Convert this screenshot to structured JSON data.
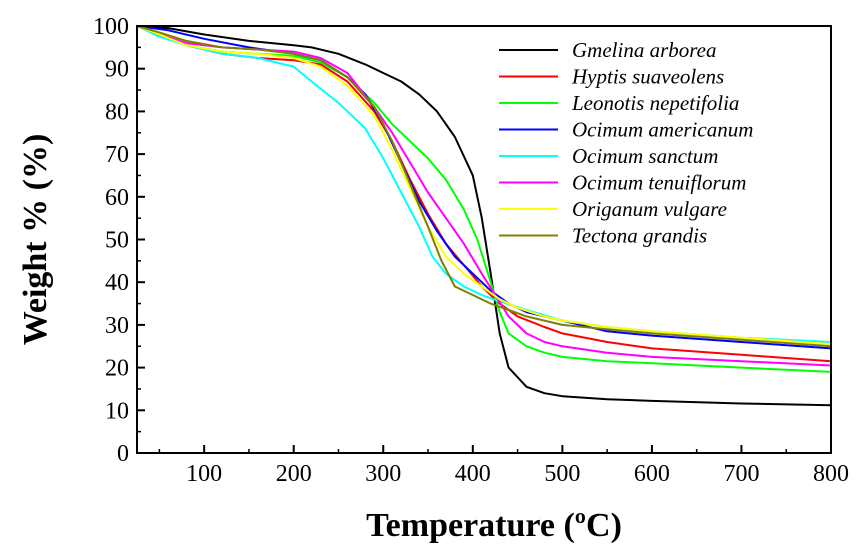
{
  "chart_data": {
    "type": "line",
    "title": "",
    "xlabel": "Temperature (ºC)",
    "ylabel": "Weight % (%)",
    "xlim": [
      25,
      800
    ],
    "ylim": [
      0,
      100
    ],
    "xticks": [
      100,
      200,
      300,
      400,
      500,
      600,
      700,
      800
    ],
    "yticks": [
      0,
      10,
      20,
      30,
      40,
      50,
      60,
      70,
      80,
      90,
      100
    ],
    "grid": false,
    "legend_position": "top-right",
    "series": [
      {
        "name": "Gmelina arborea",
        "color": "#000000",
        "points": [
          [
            25,
            100
          ],
          [
            60,
            99.5
          ],
          [
            100,
            98
          ],
          [
            150,
            96.5
          ],
          [
            200,
            95.5
          ],
          [
            220,
            95
          ],
          [
            250,
            93.5
          ],
          [
            280,
            91
          ],
          [
            300,
            89
          ],
          [
            320,
            87
          ],
          [
            340,
            84
          ],
          [
            360,
            80
          ],
          [
            380,
            74
          ],
          [
            400,
            65
          ],
          [
            410,
            55
          ],
          [
            420,
            42
          ],
          [
            430,
            28
          ],
          [
            440,
            20
          ],
          [
            460,
            15.5
          ],
          [
            480,
            14
          ],
          [
            500,
            13.3
          ],
          [
            550,
            12.6
          ],
          [
            600,
            12.2
          ],
          [
            700,
            11.6
          ],
          [
            800,
            11.2
          ]
        ]
      },
      {
        "name": "Hyptis suaveolens",
        "color": "#ff0000",
        "points": [
          [
            25,
            100
          ],
          [
            50,
            98
          ],
          [
            80,
            95.5
          ],
          [
            120,
            93.5
          ],
          [
            160,
            92.5
          ],
          [
            200,
            92
          ],
          [
            230,
            91
          ],
          [
            260,
            87
          ],
          [
            290,
            80
          ],
          [
            310,
            73
          ],
          [
            330,
            64
          ],
          [
            350,
            56
          ],
          [
            370,
            49
          ],
          [
            390,
            44
          ],
          [
            410,
            39
          ],
          [
            420,
            37
          ],
          [
            430,
            35
          ],
          [
            450,
            32
          ],
          [
            480,
            29.5
          ],
          [
            500,
            28
          ],
          [
            550,
            26
          ],
          [
            600,
            24.5
          ],
          [
            700,
            23
          ],
          [
            800,
            21.5
          ]
        ]
      },
      {
        "name": "Leonotis nepetifolia",
        "color": "#00ff00",
        "points": [
          [
            25,
            100
          ],
          [
            50,
            98
          ],
          [
            80,
            95.5
          ],
          [
            120,
            94
          ],
          [
            160,
            93.5
          ],
          [
            200,
            93
          ],
          [
            230,
            91.5
          ],
          [
            260,
            88
          ],
          [
            290,
            82
          ],
          [
            310,
            77
          ],
          [
            330,
            73
          ],
          [
            350,
            69
          ],
          [
            370,
            64
          ],
          [
            390,
            57
          ],
          [
            405,
            50
          ],
          [
            420,
            40
          ],
          [
            430,
            33
          ],
          [
            440,
            28
          ],
          [
            460,
            25
          ],
          [
            480,
            23.5
          ],
          [
            500,
            22.5
          ],
          [
            550,
            21.5
          ],
          [
            600,
            21
          ],
          [
            700,
            20
          ],
          [
            800,
            19
          ]
        ]
      },
      {
        "name": "Ocimum americanum",
        "color": "#0000ff",
        "points": [
          [
            25,
            100
          ],
          [
            60,
            99
          ],
          [
            100,
            97
          ],
          [
            150,
            95
          ],
          [
            200,
            93.5
          ],
          [
            230,
            92
          ],
          [
            260,
            88
          ],
          [
            280,
            84
          ],
          [
            300,
            77
          ],
          [
            320,
            68
          ],
          [
            340,
            59
          ],
          [
            360,
            52
          ],
          [
            380,
            46
          ],
          [
            400,
            42
          ],
          [
            420,
            38
          ],
          [
            440,
            35
          ],
          [
            460,
            33
          ],
          [
            480,
            32
          ],
          [
            500,
            31
          ],
          [
            550,
            28.5
          ],
          [
            600,
            27.5
          ],
          [
            700,
            26
          ],
          [
            800,
            24.5
          ]
        ]
      },
      {
        "name": "Ocimum sanctum",
        "color": "#00ffff",
        "points": [
          [
            25,
            100
          ],
          [
            50,
            97.5
          ],
          [
            80,
            95.5
          ],
          [
            120,
            93.5
          ],
          [
            160,
            92.5
          ],
          [
            200,
            90.5
          ],
          [
            220,
            87
          ],
          [
            250,
            82
          ],
          [
            280,
            76
          ],
          [
            300,
            69
          ],
          [
            320,
            61
          ],
          [
            340,
            53
          ],
          [
            355,
            46
          ],
          [
            370,
            42
          ],
          [
            390,
            39
          ],
          [
            410,
            37
          ],
          [
            430,
            35.5
          ],
          [
            460,
            33.5
          ],
          [
            500,
            31
          ],
          [
            550,
            29.5
          ],
          [
            600,
            28.5
          ],
          [
            700,
            27
          ],
          [
            800,
            26
          ]
        ]
      },
      {
        "name": "Ocimum tenuiflorum",
        "color": "#ff00ff",
        "points": [
          [
            25,
            100
          ],
          [
            50,
            98
          ],
          [
            80,
            96
          ],
          [
            120,
            95
          ],
          [
            160,
            94.5
          ],
          [
            200,
            94
          ],
          [
            230,
            92.5
          ],
          [
            260,
            89
          ],
          [
            290,
            81
          ],
          [
            310,
            75
          ],
          [
            330,
            68
          ],
          [
            350,
            61
          ],
          [
            370,
            55
          ],
          [
            390,
            49
          ],
          [
            410,
            42
          ],
          [
            425,
            37
          ],
          [
            440,
            32
          ],
          [
            460,
            28
          ],
          [
            480,
            26
          ],
          [
            500,
            25
          ],
          [
            550,
            23.5
          ],
          [
            600,
            22.5
          ],
          [
            700,
            21.5
          ],
          [
            800,
            20.5
          ]
        ]
      },
      {
        "name": "Origanum vulgare",
        "color": "#ffff00",
        "points": [
          [
            25,
            100
          ],
          [
            50,
            98
          ],
          [
            80,
            95.5
          ],
          [
            120,
            94
          ],
          [
            160,
            93.5
          ],
          [
            200,
            92.5
          ],
          [
            230,
            90.5
          ],
          [
            260,
            86
          ],
          [
            290,
            79
          ],
          [
            310,
            71
          ],
          [
            330,
            62
          ],
          [
            350,
            53
          ],
          [
            370,
            46
          ],
          [
            390,
            42
          ],
          [
            410,
            39
          ],
          [
            430,
            36
          ],
          [
            450,
            34
          ],
          [
            480,
            32
          ],
          [
            500,
            31
          ],
          [
            550,
            29.5
          ],
          [
            600,
            28.5
          ],
          [
            700,
            27
          ],
          [
            800,
            25.5
          ]
        ]
      },
      {
        "name": "Tectona grandis",
        "color": "#808000",
        "points": [
          [
            25,
            100
          ],
          [
            50,
            98.5
          ],
          [
            80,
            96.5
          ],
          [
            120,
            95
          ],
          [
            160,
            94.5
          ],
          [
            200,
            93.5
          ],
          [
            230,
            92
          ],
          [
            260,
            88
          ],
          [
            290,
            81
          ],
          [
            310,
            73
          ],
          [
            330,
            63
          ],
          [
            350,
            53
          ],
          [
            365,
            45
          ],
          [
            380,
            39
          ],
          [
            400,
            37
          ],
          [
            420,
            35
          ],
          [
            440,
            33.5
          ],
          [
            460,
            32
          ],
          [
            480,
            31
          ],
          [
            500,
            30
          ],
          [
            550,
            29
          ],
          [
            600,
            28
          ],
          [
            700,
            26.5
          ],
          [
            800,
            25
          ]
        ]
      }
    ]
  }
}
